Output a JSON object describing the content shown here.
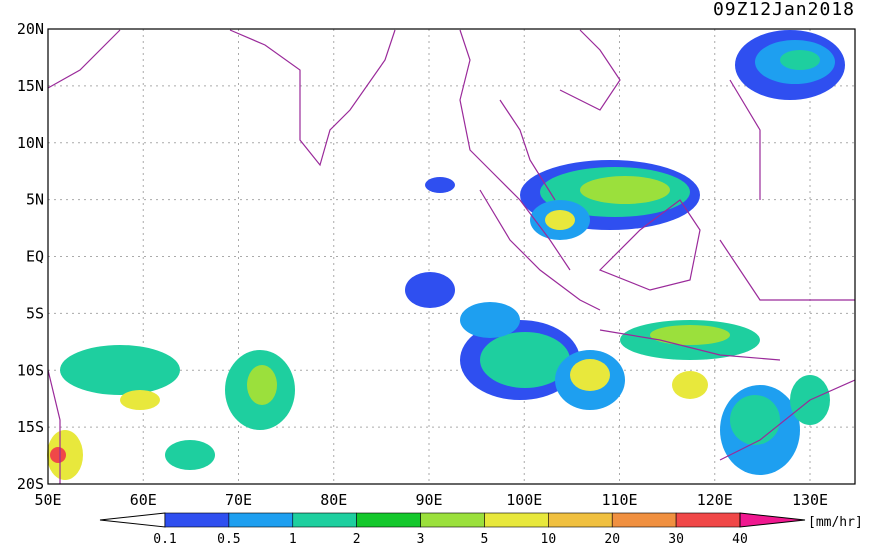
{
  "title": "09Z12Jan2018",
  "lat_labels": [
    "20N",
    "15N",
    "10N",
    "5N",
    "EQ",
    "5S",
    "10S",
    "15S",
    "20S"
  ],
  "lon_labels": [
    "50E",
    "60E",
    "70E",
    "80E",
    "90E",
    "100E",
    "110E",
    "120E",
    "130E"
  ],
  "colorbar": {
    "labels": [
      "0.1",
      "0.5",
      "1",
      "2",
      "3",
      "5",
      "10",
      "20",
      "30",
      "40"
    ],
    "colors": [
      "#ffffff",
      "#2f4ff0",
      "#1e9ff0",
      "#1ecf9f",
      "#14c82c",
      "#9be03c",
      "#e8e83c",
      "#f0c040",
      "#f09040",
      "#f04848",
      "#f01890"
    ],
    "unit": "[mm/hr]"
  }
}
